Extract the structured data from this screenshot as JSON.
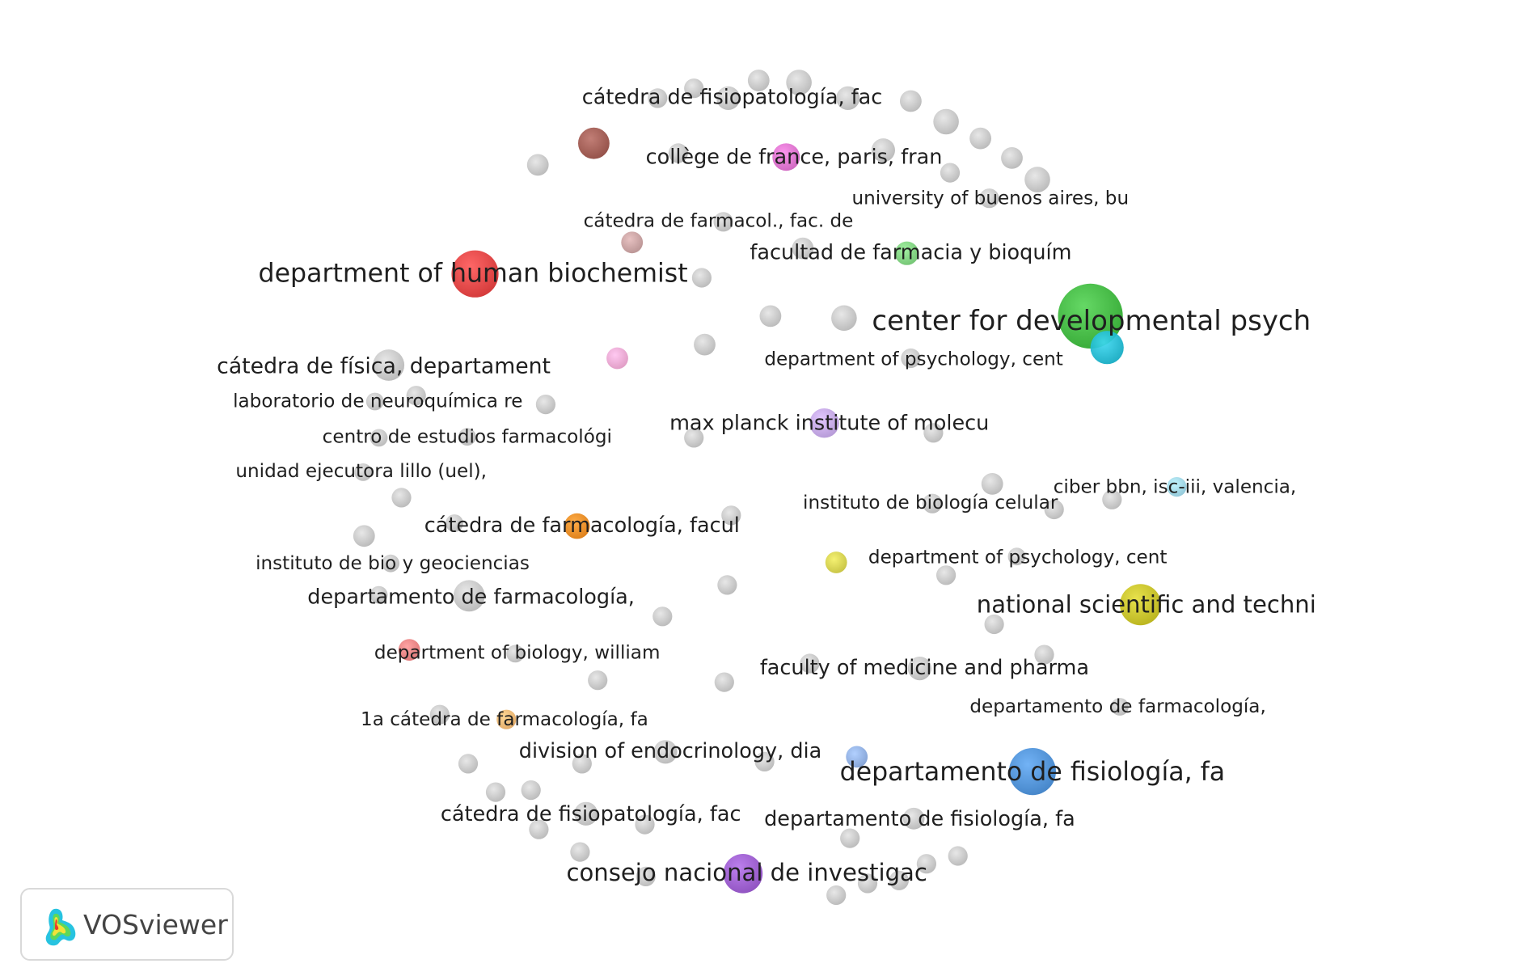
{
  "app_name": "VOSviewer",
  "nodes": [
    {
      "label": "cátedra de fisiopatología, fac",
      "color": "#c9c9c9"
    },
    {
      "label": "collège de france, paris, fran",
      "color": "#e070d0"
    },
    {
      "label": "university of buenos aires, bu",
      "color": "#c9c9c9"
    },
    {
      "label": "cátedra de farmacol., fac. de",
      "color": "#c9a0a0"
    },
    {
      "label": "facultad de farmacia y bioquím",
      "color": "#7ed47e"
    },
    {
      "label": "department of human biochemist",
      "color": "#e53e3e"
    },
    {
      "label": "center for developmental psych",
      "color": "#3cb93c"
    },
    {
      "label": "department of psychology, cent",
      "color": "#22bcd4"
    },
    {
      "label": "cátedra de física, departament",
      "color": "#c9c9c9"
    },
    {
      "label": "laboratorio de neuroquímica re",
      "color": "#c9c9c9"
    },
    {
      "label": "max planck institute of molecu",
      "color": "#c4a6e8"
    },
    {
      "label": "centro de estudios farmacológi",
      "color": "#c9c9c9"
    },
    {
      "label": "unidad ejecutora lillo (uel),",
      "color": "#c9c9c9"
    },
    {
      "label": "ciber bbn, isc-iii, valencia,",
      "color": "#9fd8ea"
    },
    {
      "label": "instituto de biología celular",
      "color": "#c9c9c9"
    },
    {
      "label": "cátedra de farmacología, facul",
      "color": "#f08a1c"
    },
    {
      "label": "department of psychology, cent",
      "color": "#d8d44a"
    },
    {
      "label": "instituto de bio y geociencias",
      "color": "#c9c9c9"
    },
    {
      "label": "departamento de farmacología,",
      "color": "#c9c9c9"
    },
    {
      "label": "national scientific and techni",
      "color": "#c9c321"
    },
    {
      "label": "department of biology, william",
      "color": "#f08080"
    },
    {
      "label": "faculty of medicine and pharma",
      "color": "#c9c9c9"
    },
    {
      "label": "departamento de farmacología,",
      "color": "#c9c9c9"
    },
    {
      "label": "1a cátedra de farmacología, fa",
      "color": "#f5b870"
    },
    {
      "label": "division of endocrinology, dia",
      "color": "#c9c9c9"
    },
    {
      "label": "departamento de fisiología, fa",
      "color": "#4a90d9"
    },
    {
      "label": "cátedra de fisiopatología, fac",
      "color": "#c9c9c9"
    },
    {
      "label": "departamento de fisiología, fa",
      "color": "#c9c9c9"
    },
    {
      "label": "consejo nacional de investigac",
      "color": "#9b59d0"
    }
  ],
  "unlabeled_node_colors": {
    "grey": "#c9c9c9",
    "brown": "#a0574e",
    "pink": "#f2a8d4",
    "light_blue": "#8fb0e6"
  }
}
